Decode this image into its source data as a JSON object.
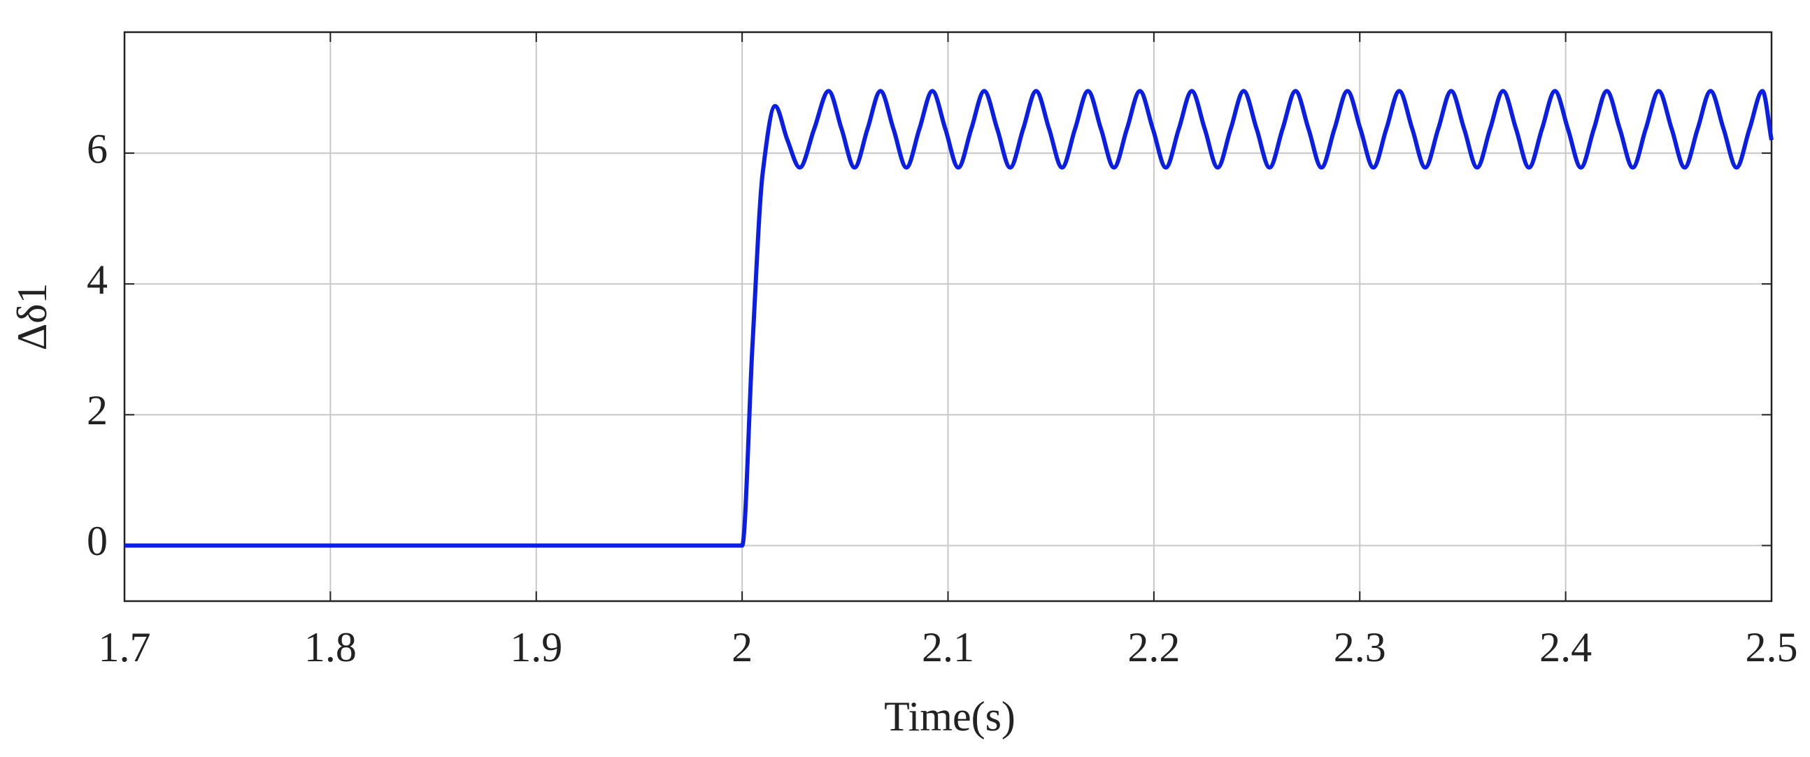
{
  "chart_data": {
    "type": "line",
    "x_label": "Time(s)",
    "y_label": "Δδ1",
    "x": [
      1.7,
      2.0,
      2.005,
      2.01,
      2.016,
      2.022,
      2.028,
      2.035,
      2.042,
      2.0483,
      2.0546,
      2.0609,
      2.0672,
      2.0735,
      2.0798,
      2.0861,
      2.0924,
      2.0987,
      2.105,
      2.1113,
      2.1176,
      2.1239,
      2.1302,
      2.1365,
      2.1428,
      2.1491,
      2.1554,
      2.1617,
      2.168,
      2.1743,
      2.1806,
      2.1869,
      2.1932,
      2.1995,
      2.2058,
      2.2121,
      2.2184,
      2.2247,
      2.231,
      2.2373,
      2.2436,
      2.2499,
      2.2562,
      2.2625,
      2.2688,
      2.2751,
      2.2814,
      2.2877,
      2.294,
      2.3003,
      2.3066,
      2.3129,
      2.3192,
      2.3255,
      2.3318,
      2.3381,
      2.3444,
      2.3507,
      2.357,
      2.3633,
      2.3696,
      2.3759,
      2.3822,
      2.3885,
      2.3948,
      2.4011,
      2.4074,
      2.4137,
      2.42,
      2.4263,
      2.4326,
      2.4389,
      2.4452,
      2.4515,
      2.4578,
      2.4641,
      2.4704,
      2.4767,
      2.483,
      2.4893,
      2.4956,
      2.5
    ],
    "series": [
      {
        "color": "#0a1ee6",
        "values": [
          0,
          0,
          3.05,
          5.7,
          6.72,
          6.2,
          5.78,
          6.37,
          6.95,
          6.37,
          5.78,
          6.37,
          6.95,
          6.37,
          5.78,
          6.37,
          6.95,
          6.37,
          5.78,
          6.37,
          6.95,
          6.37,
          5.78,
          6.37,
          6.95,
          6.37,
          5.78,
          6.37,
          6.95,
          6.37,
          5.78,
          6.37,
          6.95,
          6.37,
          5.78,
          6.37,
          6.95,
          6.37,
          5.78,
          6.37,
          6.95,
          6.37,
          5.78,
          6.37,
          6.95,
          6.37,
          5.78,
          6.37,
          6.95,
          6.37,
          5.78,
          6.37,
          6.95,
          6.37,
          5.78,
          6.37,
          6.95,
          6.37,
          5.78,
          6.37,
          6.95,
          6.37,
          5.78,
          6.37,
          6.95,
          6.37,
          5.78,
          6.37,
          6.95,
          6.37,
          5.78,
          6.37,
          6.95,
          6.37,
          5.78,
          6.37,
          6.95,
          6.37,
          5.78,
          6.37,
          6.95,
          6.2
        ]
      }
    ],
    "xlim": [
      1.7,
      2.5
    ],
    "xticks": [
      1.7,
      1.8,
      1.9,
      2,
      2.1,
      2.2,
      2.3,
      2.4,
      2.5
    ],
    "ylim": [
      -0.85,
      7.85
    ],
    "yticks": [
      0,
      2,
      4,
      6
    ],
    "grid": true
  }
}
